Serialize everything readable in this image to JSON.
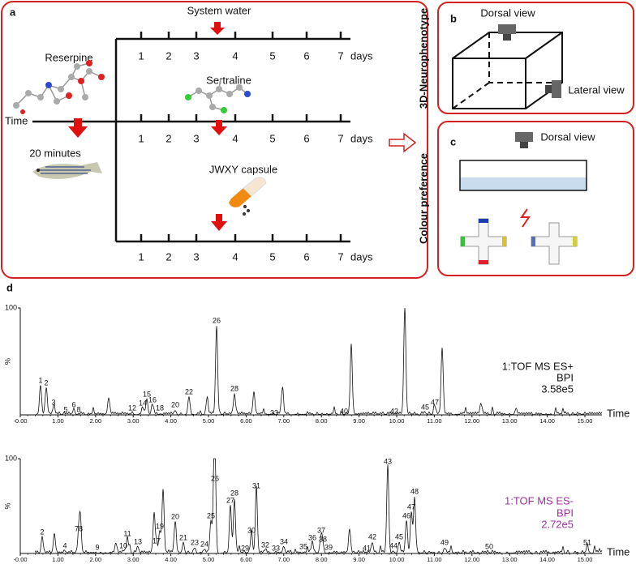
{
  "panels": {
    "a": {
      "label": "a",
      "top_treatment": "System water",
      "middle_treatment": "Sertraline",
      "bottom_treatment": "JWXY capsule",
      "model_drug": "Reserpine",
      "interval": "20 minutes",
      "time_label": "Time",
      "day_ticks": [
        "1",
        "2",
        "3",
        "4",
        "5",
        "6",
        "7"
      ],
      "day_unit": "days"
    },
    "b": {
      "label": "b",
      "title": "3D-Neurophenotype",
      "dorsal": "Dorsal view",
      "lateral": "Lateral view"
    },
    "c": {
      "label": "c",
      "title": "Colour preference",
      "dorsal": "Dorsal view"
    },
    "d": {
      "label": "d",
      "y_max": "100",
      "y_unit": "%",
      "x_label": "Time",
      "x_ticks": [
        "-0.00",
        "1.00",
        "2.00",
        "3.00",
        "4.00",
        "5.00",
        "6.00",
        "7.00",
        "8.00",
        "9.00",
        "10.00",
        "11.00",
        "12.00",
        "13.00",
        "14.00",
        "15.00"
      ],
      "chromatograms": [
        {
          "mode": "1:TOF MS ES+",
          "trace": "BPI",
          "intensity": "3.58e5",
          "peaks": [
            "1",
            "2",
            "3",
            "5",
            "6",
            "8",
            "12",
            "14",
            "15",
            "16",
            "18",
            "20",
            "22",
            "26",
            "28",
            "33",
            "40",
            "42",
            "45",
            "47"
          ]
        },
        {
          "mode": "1:TOF MS ES-",
          "trace": "BPI",
          "intensity": "2.72e5",
          "peaks": [
            "2",
            "78",
            "4",
            "9",
            "10",
            "11",
            "13",
            "17",
            "19",
            "20",
            "21",
            "23",
            "24",
            "25",
            "26",
            "27",
            "28",
            "29",
            "30",
            "31",
            "32",
            "33",
            "34",
            "35",
            "36",
            "37",
            "38",
            "39",
            "41",
            "42",
            "43",
            "44",
            "45",
            "46",
            "47",
            "48",
            "49",
            "50",
            "51"
          ]
        }
      ]
    }
  }
}
